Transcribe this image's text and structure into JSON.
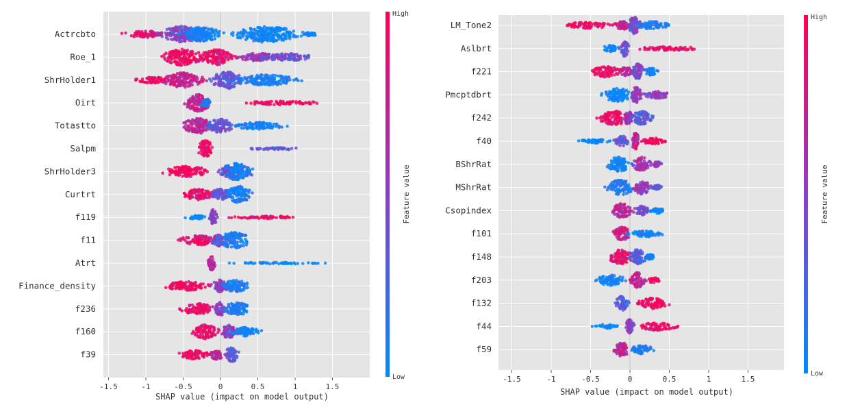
{
  "chart_data": [
    {
      "type": "scatter",
      "subtype": "shap-beeswarm",
      "xlabel": "SHAP value (impact on model output)",
      "xticks": [
        -1.5,
        -1.0,
        -0.5,
        0.0,
        0.5,
        1.0,
        1.5
      ],
      "xlim": [
        -1.6,
        2.0
      ],
      "grid": true,
      "colorbar": {
        "label": "Feature value",
        "high": "High",
        "low": "Low",
        "high_color": "#ff0052",
        "mid_color": "#8a3fc6",
        "low_color": "#008bfb"
      },
      "features": [
        {
          "name": "Actrcbto",
          "clusters": [
            [
              -1.0,
              0.42,
              0.35,
              0.9
            ],
            [
              -0.5,
              0.4,
              0.9,
              0.45
            ],
            [
              -0.25,
              0.35,
              0.8,
              0.05
            ],
            [
              0.6,
              0.6,
              0.9,
              0.0
            ],
            [
              1.2,
              0.12,
              0.2,
              0.0
            ]
          ]
        },
        {
          "name": "Roe_1",
          "clusters": [
            [
              -0.5,
              0.35,
              0.95,
              0.95
            ],
            [
              -0.05,
              0.3,
              0.85,
              0.9
            ],
            [
              0.5,
              0.35,
              0.45,
              0.55
            ],
            [
              0.9,
              0.45,
              0.4,
              0.4
            ]
          ]
        },
        {
          "name": "ShrHolder1",
          "clusters": [
            [
              -0.9,
              0.3,
              0.35,
              0.95
            ],
            [
              -0.5,
              0.35,
              0.85,
              0.75
            ],
            [
              0.1,
              0.3,
              0.95,
              0.35
            ],
            [
              0.6,
              0.55,
              0.6,
              0.05
            ]
          ]
        },
        {
          "name": "Oirt",
          "clusters": [
            [
              -0.3,
              0.22,
              0.95,
              0.75
            ],
            [
              -0.2,
              0.1,
              0.5,
              0.15
            ],
            [
              0.8,
              0.72,
              0.2,
              0.95
            ]
          ]
        },
        {
          "name": "Totastto",
          "clusters": [
            [
              -0.3,
              0.28,
              0.85,
              0.7
            ],
            [
              0.0,
              0.25,
              0.75,
              0.35
            ],
            [
              0.5,
              0.45,
              0.4,
              0.05
            ]
          ]
        },
        {
          "name": "Salpm",
          "clusters": [
            [
              -0.2,
              0.14,
              0.95,
              0.9
            ],
            [
              0.75,
              0.48,
              0.12,
              0.35
            ]
          ]
        },
        {
          "name": "ShrHolder3",
          "clusters": [
            [
              -0.45,
              0.4,
              0.6,
              0.95
            ],
            [
              0.1,
              0.15,
              0.6,
              0.5
            ],
            [
              0.22,
              0.28,
              0.95,
              0.1
            ]
          ]
        },
        {
          "name": "Curtrt",
          "clusters": [
            [
              -0.3,
              0.27,
              0.6,
              0.9
            ],
            [
              0.0,
              0.2,
              0.6,
              0.35
            ],
            [
              0.25,
              0.22,
              0.95,
              0.05
            ]
          ]
        },
        {
          "name": "f119",
          "clusters": [
            [
              -0.32,
              0.2,
              0.22,
              0.0
            ],
            [
              -0.1,
              0.07,
              0.9,
              0.5
            ],
            [
              0.6,
              0.62,
              0.15,
              0.95
            ]
          ]
        },
        {
          "name": "f11",
          "clusters": [
            [
              -0.3,
              0.33,
              0.55,
              0.9
            ],
            [
              -0.02,
              0.15,
              0.65,
              0.5
            ],
            [
              0.18,
              0.3,
              0.9,
              0.1
            ]
          ]
        },
        {
          "name": "Atrt",
          "clusters": [
            [
              -0.12,
              0.07,
              0.8,
              0.7
            ],
            [
              0.8,
              0.8,
              0.1,
              0.0
            ]
          ]
        },
        {
          "name": "Finance_density",
          "clusters": [
            [
              -0.45,
              0.4,
              0.5,
              0.95
            ],
            [
              0.0,
              0.15,
              0.7,
              0.5
            ],
            [
              0.2,
              0.25,
              0.65,
              0.1
            ]
          ]
        },
        {
          "name": "f236",
          "clusters": [
            [
              -0.3,
              0.3,
              0.6,
              0.9
            ],
            [
              0.0,
              0.1,
              0.75,
              0.5
            ],
            [
              0.22,
              0.25,
              0.7,
              0.1
            ]
          ]
        },
        {
          "name": "f160",
          "clusters": [
            [
              -0.2,
              0.23,
              0.8,
              0.9
            ],
            [
              0.12,
              0.15,
              0.75,
              0.5
            ],
            [
              0.35,
              0.25,
              0.5,
              0.05
            ]
          ]
        },
        {
          "name": "f39",
          "clusters": [
            [
              -0.35,
              0.27,
              0.5,
              0.95
            ],
            [
              -0.05,
              0.12,
              0.55,
              0.7
            ],
            [
              0.15,
              0.13,
              0.85,
              0.35
            ]
          ]
        }
      ]
    },
    {
      "type": "scatter",
      "subtype": "shap-beeswarm",
      "xlabel": "SHAP value (impact on model output)",
      "xticks": [
        -1.5,
        -1.0,
        -0.5,
        0.0,
        0.5,
        1.0,
        1.5
      ],
      "xlim": [
        -1.6,
        1.95
      ],
      "grid": true,
      "colorbar": {
        "label": "Feature value",
        "high": "High",
        "low": "Low",
        "high_color": "#ff0052",
        "mid_color": "#8a3fc6",
        "low_color": "#008bfb"
      },
      "features": [
        {
          "name": "LM_Tone2",
          "clusters": [
            [
              -0.55,
              0.4,
              0.35,
              0.95
            ],
            [
              -0.1,
              0.15,
              0.5,
              0.8
            ],
            [
              0.06,
              0.12,
              0.95,
              0.45
            ],
            [
              0.3,
              0.25,
              0.45,
              0.05
            ]
          ]
        },
        {
          "name": "Aslbrt",
          "clusters": [
            [
              -0.25,
              0.14,
              0.35,
              0.0
            ],
            [
              -0.07,
              0.07,
              0.9,
              0.4
            ],
            [
              0.5,
              0.53,
              0.22,
              0.95
            ]
          ]
        },
        {
          "name": "f221",
          "clusters": [
            [
              -0.3,
              0.25,
              0.6,
              0.95
            ],
            [
              -0.05,
              0.12,
              0.5,
              0.75
            ],
            [
              0.1,
              0.1,
              0.9,
              0.45
            ],
            [
              0.27,
              0.12,
              0.4,
              0.05
            ]
          ]
        },
        {
          "name": "Pmcptdbrt",
          "clusters": [
            [
              -0.15,
              0.25,
              0.8,
              0.0
            ],
            [
              0.08,
              0.1,
              0.9,
              0.55
            ],
            [
              0.35,
              0.25,
              0.4,
              0.5
            ]
          ]
        },
        {
          "name": "f242",
          "clusters": [
            [
              -0.2,
              0.25,
              0.8,
              0.95
            ],
            [
              -0.02,
              0.08,
              0.8,
              0.6
            ],
            [
              0.15,
              0.2,
              0.75,
              0.3
            ]
          ]
        },
        {
          "name": "f40",
          "clusters": [
            [
              -0.45,
              0.27,
              0.22,
              0.0
            ],
            [
              -0.1,
              0.12,
              0.6,
              0.35
            ],
            [
              0.07,
              0.07,
              0.95,
              0.75
            ],
            [
              0.3,
              0.2,
              0.35,
              0.95
            ]
          ]
        },
        {
          "name": "BShrRat",
          "clusters": [
            [
              -0.15,
              0.2,
              0.85,
              0.0
            ],
            [
              0.15,
              0.15,
              0.8,
              0.6
            ],
            [
              0.35,
              0.08,
              0.3,
              0.5
            ]
          ]
        },
        {
          "name": "MShrRat",
          "clusters": [
            [
              -0.12,
              0.22,
              0.85,
              0.1
            ],
            [
              0.15,
              0.15,
              0.75,
              0.55
            ],
            [
              0.35,
              0.08,
              0.3,
              0.3
            ]
          ]
        },
        {
          "name": "Csopindex",
          "clusters": [
            [
              -0.1,
              0.18,
              0.8,
              0.7
            ],
            [
              0.15,
              0.15,
              0.5,
              0.4
            ],
            [
              0.35,
              0.12,
              0.3,
              0.05
            ]
          ]
        },
        {
          "name": "f101",
          "clusters": [
            [
              -0.1,
              0.15,
              0.75,
              0.75
            ],
            [
              0.2,
              0.3,
              0.35,
              0.05
            ]
          ]
        },
        {
          "name": "f148",
          "clusters": [
            [
              -0.12,
              0.2,
              0.8,
              0.9
            ],
            [
              0.1,
              0.15,
              0.85,
              0.3
            ],
            [
              0.25,
              0.08,
              0.3,
              0.0
            ]
          ]
        },
        {
          "name": "f203",
          "clusters": [
            [
              -0.25,
              0.25,
              0.6,
              0.05
            ],
            [
              0.1,
              0.12,
              0.85,
              0.7
            ],
            [
              0.3,
              0.1,
              0.3,
              0.95
            ]
          ]
        },
        {
          "name": "f132",
          "clusters": [
            [
              -0.1,
              0.12,
              0.8,
              0.3
            ],
            [
              0.3,
              0.25,
              0.6,
              0.95
            ]
          ]
        },
        {
          "name": "f44",
          "clusters": [
            [
              -0.3,
              0.2,
              0.22,
              0.0
            ],
            [
              0.0,
              0.08,
              0.8,
              0.5
            ],
            [
              0.35,
              0.3,
              0.45,
              0.95
            ]
          ]
        },
        {
          "name": "f59",
          "clusters": [
            [
              -0.1,
              0.12,
              0.8,
              0.75
            ],
            [
              0.15,
              0.2,
              0.5,
              0.1
            ]
          ]
        }
      ]
    }
  ]
}
